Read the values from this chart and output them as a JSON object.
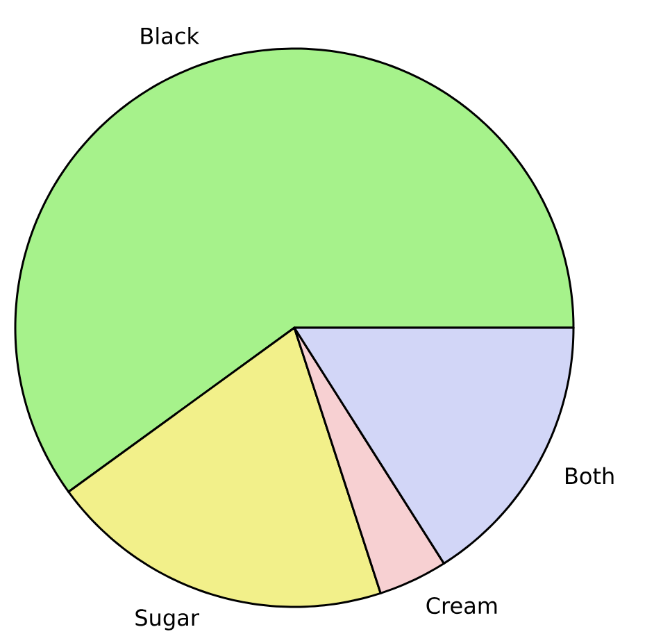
{
  "chart_data": {
    "type": "pie",
    "categories": [
      "Black",
      "Sugar",
      "Cream",
      "Both"
    ],
    "values": [
      60,
      20,
      4,
      16
    ],
    "colors": [
      "#a6f28b",
      "#f2f08a",
      "#f7d0d2",
      "#d2d6f7"
    ]
  }
}
